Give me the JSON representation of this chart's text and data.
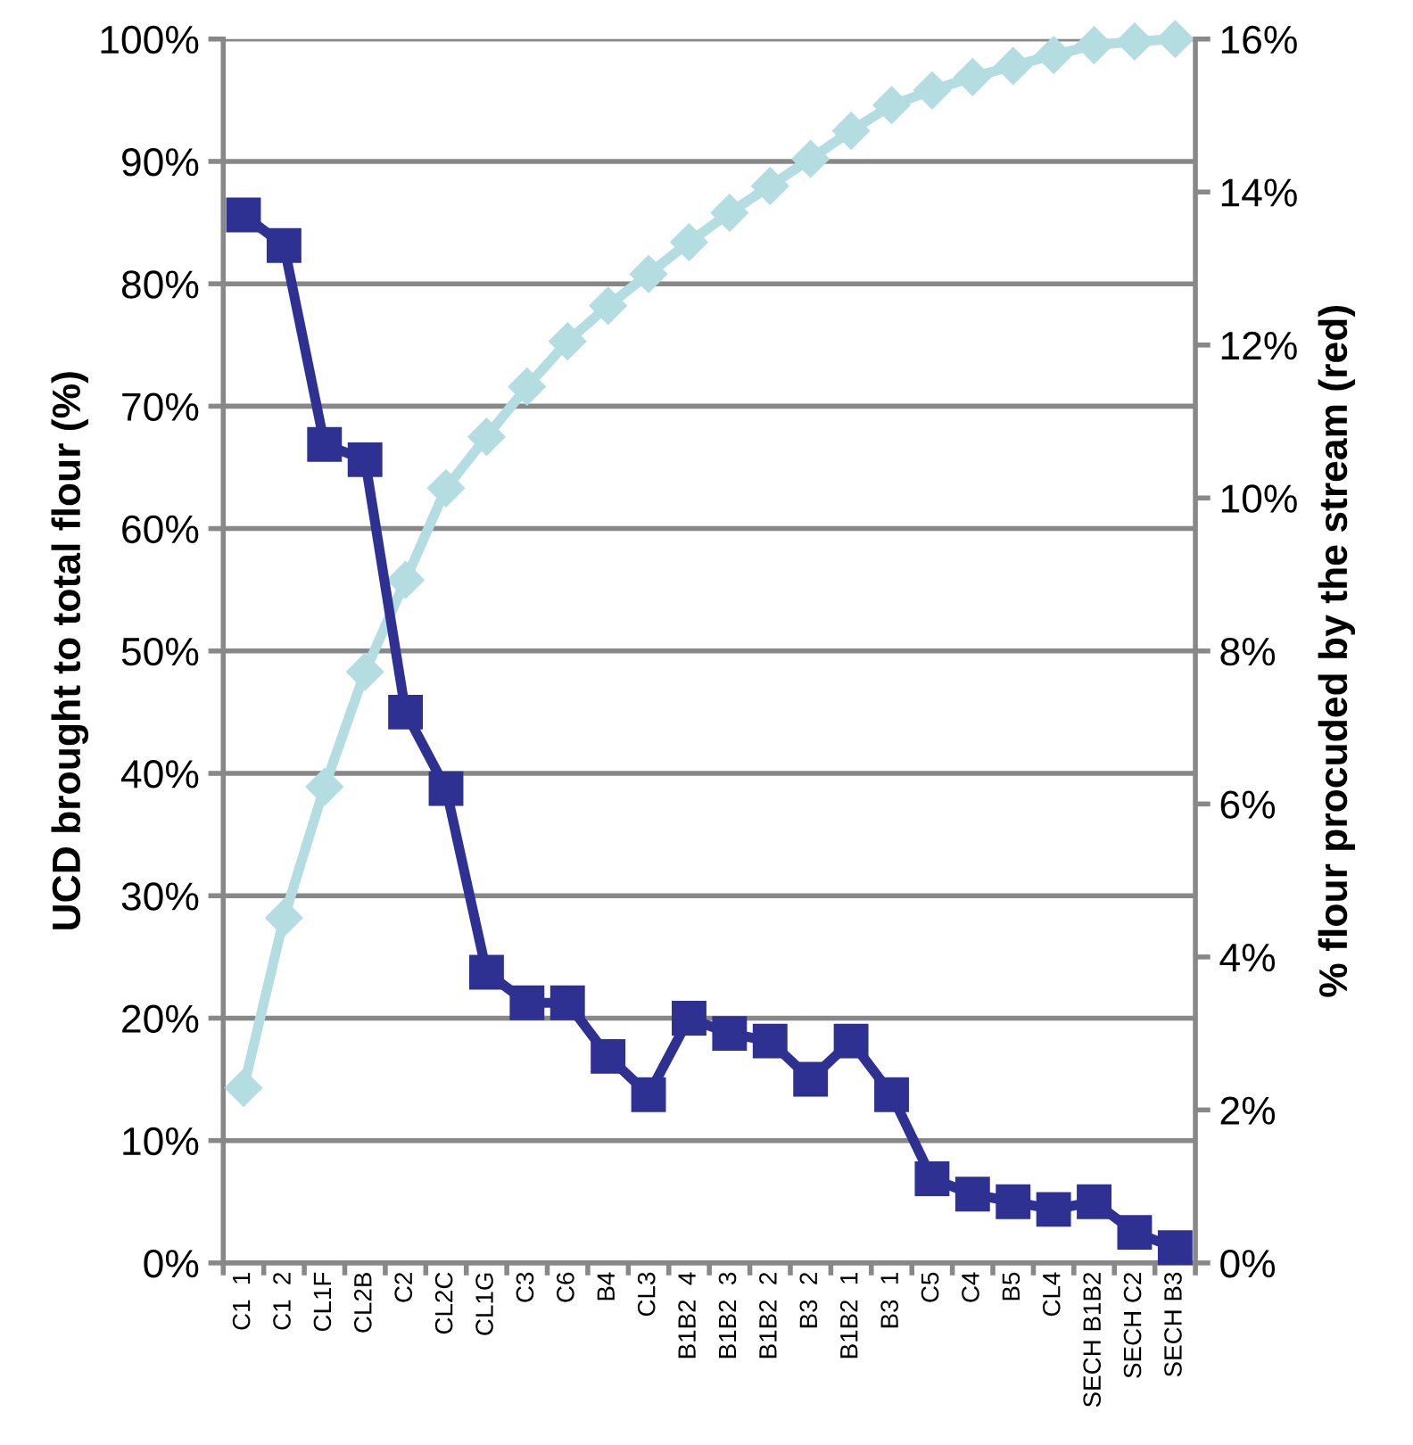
{
  "chart_data": {
    "type": "line",
    "ylabel": "UCD brought to total flour (%)",
    "y2label": "% flour procuded by the stream (red)",
    "categories": [
      "C1  1",
      "C1  2",
      "CL1F",
      "CL2B",
      "C2",
      "CL2C",
      "CL1G",
      "C3",
      "C6",
      "B4",
      "CL3",
      "B1B2  4",
      "B1B2  3",
      "B1B2  2",
      "B3  2",
      "B1B2  1",
      "B3  1",
      "C5",
      "C4",
      "B5",
      "CL4",
      "SECH B1B2",
      "SECH C2",
      "SECH B3"
    ],
    "series": [
      {
        "color": "#b3dde0",
        "marker": "diamond",
        "values": [
          14.3,
          28.2,
          38.9,
          48.3,
          55.8,
          63.3,
          67.5,
          71.6,
          75.3,
          78.2,
          80.8,
          83.4,
          85.8,
          88.0,
          90.2,
          92.5,
          94.6,
          95.8,
          96.9,
          97.8,
          98.7,
          99.5,
          99.8,
          100
        ]
      },
      {
        "color": "#2e3192",
        "marker": "square",
        "axis": "y2",
        "values": [
          13.7,
          13.3,
          10.7,
          10.5,
          7.2,
          6.2,
          3.8,
          3.4,
          3.4,
          2.7,
          2.2,
          3.2,
          3.0,
          2.9,
          2.4,
          2.9,
          2.2,
          1.1,
          0.9,
          0.8,
          0.7,
          0.8,
          0.4,
          0.2
        ]
      }
    ],
    "ylim": [
      0,
      100
    ],
    "yticks": [
      {
        "value": 0,
        "label": "0%"
      },
      {
        "value": 10,
        "label": "10%"
      },
      {
        "value": 20,
        "label": "20%"
      },
      {
        "value": 30,
        "label": "30%"
      },
      {
        "value": 40,
        "label": "40%"
      },
      {
        "value": 50,
        "label": "50%"
      },
      {
        "value": 60,
        "label": "60%"
      },
      {
        "value": 70,
        "label": "70%"
      },
      {
        "value": 80,
        "label": "80%"
      },
      {
        "value": 90,
        "label": "90%"
      },
      {
        "value": 100,
        "label": "100%"
      }
    ],
    "y2lim": [
      0,
      16
    ],
    "y2ticks": [
      {
        "value": 0,
        "label": "0%"
      },
      {
        "value": 2,
        "label": "2%"
      },
      {
        "value": 4,
        "label": "4%"
      },
      {
        "value": 6,
        "label": "6%"
      },
      {
        "value": 8,
        "label": "8%"
      },
      {
        "value": 10,
        "label": "10%"
      },
      {
        "value": 12,
        "label": "12%"
      },
      {
        "value": 14,
        "label": "14%"
      },
      {
        "value": 16,
        "label": "16%"
      }
    ],
    "grid": "y",
    "line_style": "solid"
  }
}
